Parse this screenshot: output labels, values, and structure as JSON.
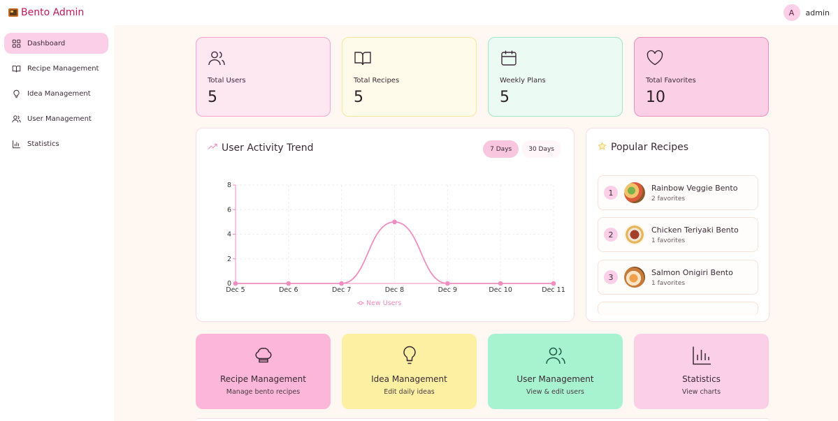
{
  "header": {
    "brand": "Bento Admin",
    "avatar_initial": "A",
    "username": "admin"
  },
  "sidebar": {
    "items": [
      {
        "label": "Dashboard",
        "icon": "grid-icon",
        "active": true
      },
      {
        "label": "Recipe Management",
        "icon": "book-icon"
      },
      {
        "label": "Idea Management",
        "icon": "lightbulb-icon"
      },
      {
        "label": "User Management",
        "icon": "users-icon"
      },
      {
        "label": "Statistics",
        "icon": "bar-chart-icon"
      }
    ]
  },
  "stats": [
    {
      "label": "Total Users",
      "value": "5",
      "icon": "users-icon"
    },
    {
      "label": "Total Recipes",
      "value": "5",
      "icon": "book-icon"
    },
    {
      "label": "Weekly Plans",
      "value": "5",
      "icon": "calendar-icon"
    },
    {
      "label": "Total Favorites",
      "value": "10",
      "icon": "heart-icon"
    }
  ],
  "activity": {
    "title": "User Activity Trend",
    "ranges": [
      "7 Days",
      "30 Days"
    ],
    "selected_range": "7 Days"
  },
  "chart_data": {
    "type": "line",
    "x": [
      "Dec 5",
      "Dec 6",
      "Dec 7",
      "Dec 8",
      "Dec 9",
      "Dec 10",
      "Dec 11"
    ],
    "series": [
      {
        "name": "New Users",
        "values": [
          0,
          0,
          0,
          5,
          0,
          0,
          0
        ]
      }
    ],
    "yticks": [
      0,
      2,
      4,
      6,
      8
    ],
    "ylim": [
      0,
      8
    ],
    "grid": true,
    "legend": "bottom",
    "color": "#f08cc0"
  },
  "popular": {
    "title": "Popular Recipes",
    "items": [
      {
        "rank": "1",
        "name": "Rainbow Veggie Bento",
        "favorites": "2 favorites"
      },
      {
        "rank": "2",
        "name": "Chicken Teriyaki Bento",
        "favorites": "1 favorites"
      },
      {
        "rank": "3",
        "name": "Salmon Onigiri Bento",
        "favorites": "1 favorites"
      }
    ]
  },
  "quick_actions": [
    {
      "title": "Recipe Management",
      "subtitle": "Manage bento recipes",
      "icon": "chef-hat-icon"
    },
    {
      "title": "Idea Management",
      "subtitle": "Edit daily ideas",
      "icon": "lightbulb-icon"
    },
    {
      "title": "User Management",
      "subtitle": "View & edit users",
      "icon": "users-icon"
    },
    {
      "title": "Statistics",
      "subtitle": "View charts",
      "icon": "bar-chart-icon"
    }
  ]
}
